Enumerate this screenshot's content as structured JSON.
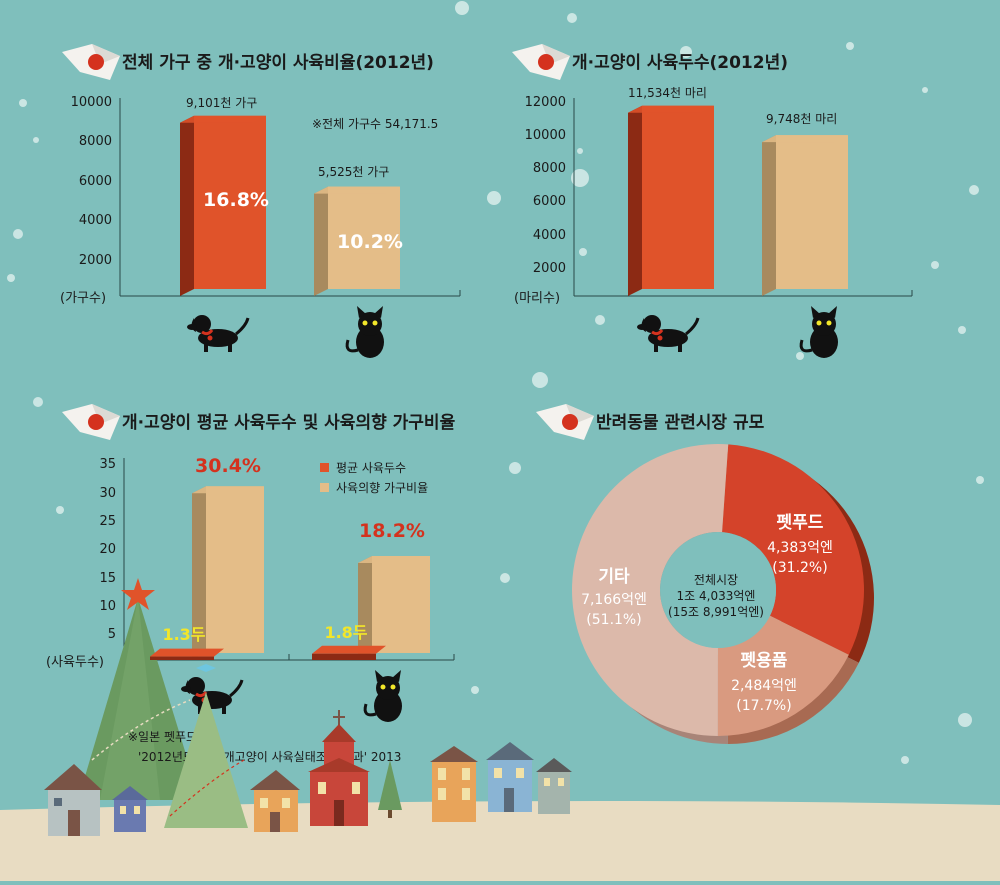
{
  "colors": {
    "background": "#7fbfbc",
    "dog_bar": "#e0532a",
    "cat_bar": "#e4bd88",
    "bar_side_dark": "#8c2a14",
    "bar_side_light": "#a88a5e",
    "ground": "#e8dcc2",
    "pie_petfood": "#d4432a",
    "pie_supplies": "#d99a80",
    "pie_other": "#dcb9aa",
    "highlight_text": "#f2e62a",
    "red_label": "#d4321e"
  },
  "icons": [
    "flag-plane-icon",
    "dog-icon",
    "cat-icon",
    "christmas-tree-icon",
    "house-icon",
    "star-icon",
    "bow-icon"
  ],
  "chart_data": [
    {
      "type": "bar",
      "title": "전체 가구 중 개·고양이 사육비율(2012년)",
      "ylabel": "(가구수)",
      "ylim": [
        0,
        10000
      ],
      "yticks": [
        "2000",
        "4000",
        "6000",
        "8000",
        "10000"
      ],
      "categories": [
        "dog",
        "cat"
      ],
      "values": [
        9101,
        5525
      ],
      "value_labels": [
        "9,101천 가구",
        "5,525천 가구"
      ],
      "percent_labels": [
        "16.8%",
        "10.2%"
      ],
      "annotation": "※전체 가구수 54,171.5"
    },
    {
      "type": "bar",
      "title": "개·고양이 사육두수(2012년)",
      "ylabel": "(마리수)",
      "ylim": [
        0,
        12000
      ],
      "yticks": [
        "2000",
        "4000",
        "6000",
        "8000",
        "10000",
        "12000"
      ],
      "categories": [
        "dog",
        "cat"
      ],
      "values": [
        11534,
        9748
      ],
      "value_labels": [
        "11,534천 마리",
        "9,748천 마리"
      ]
    },
    {
      "type": "bar",
      "title": "개·고양이 평균 사육두수 및 사육의향 가구비율",
      "ylabel": "(사육두수)",
      "ylim": [
        0,
        35
      ],
      "yticks": [
        "5",
        "10",
        "15",
        "20",
        "25",
        "30",
        "35"
      ],
      "categories": [
        "dog",
        "cat"
      ],
      "series": [
        {
          "name": "평균 사육두수",
          "values": [
            1.3,
            1.8
          ],
          "labels": [
            "1.3두",
            "1.8두"
          ]
        },
        {
          "name": "사육의향 가구비율",
          "values": [
            30.4,
            18.2
          ],
          "labels": [
            "30.4%",
            "18.2%"
          ]
        }
      ],
      "source_line1": "※일본 펫푸드협회",
      "source_line2": "'2012년도 전국 개고양이 사육실태조사 결과' 2013"
    },
    {
      "type": "pie",
      "title": "반려동물 관련시장 규모",
      "center_line1": "전체시장",
      "center_line2": "1조 4,033억엔",
      "center_line3": "(15조 8,991억엔)",
      "slices": [
        {
          "name": "펫푸드",
          "value_text": "4,383억엔",
          "pct_text": "(31.2%)",
          "value": 31.2
        },
        {
          "name": "펫용품",
          "value_text": "2,484억엔",
          "pct_text": "(17.7%)",
          "value": 17.7
        },
        {
          "name": "기타",
          "value_text": "7,166억엔",
          "pct_text": "(51.1%)",
          "value": 51.1
        }
      ]
    }
  ]
}
